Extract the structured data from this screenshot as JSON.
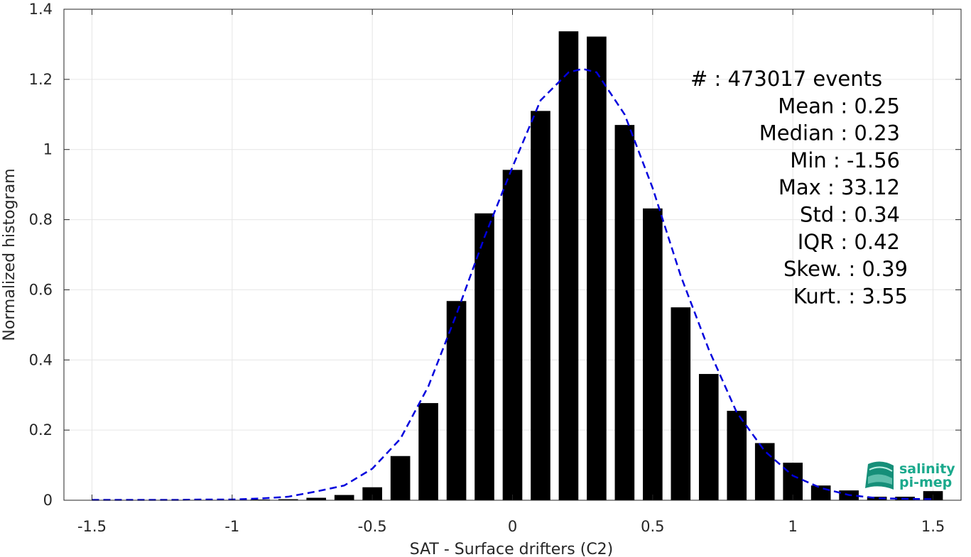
{
  "chart_data": {
    "type": "bar",
    "xlabel": "SAT - Surface drifters (C2)",
    "ylabel": "Normalized histogram",
    "xlim": [
      -1.6,
      1.6
    ],
    "ylim": [
      0,
      1.4
    ],
    "xticks": [
      -1.5,
      -1,
      -0.5,
      0,
      0.5,
      1,
      1.5
    ],
    "xtick_labels": [
      "-1.5",
      "-1",
      "-0.5",
      "0",
      "0.5",
      "1",
      "1.5"
    ],
    "yticks": [
      0,
      0.2,
      0.4,
      0.6,
      0.8,
      1,
      1.2,
      1.4
    ],
    "ytick_labels": [
      "0",
      "0.2",
      "0.4",
      "0.6",
      "0.8",
      "1",
      "1.2",
      "1.4"
    ],
    "grid": true,
    "bar_color": "#000000",
    "bar_width": 0.07,
    "bars": {
      "x": [
        -1.5,
        -1.4,
        -1.3,
        -1.2,
        -1.1,
        -1.0,
        -0.9,
        -0.8,
        -0.7,
        -0.6,
        -0.5,
        -0.4,
        -0.3,
        -0.2,
        -0.1,
        0.0,
        0.1,
        0.2,
        0.3,
        0.4,
        0.5,
        0.6,
        0.7,
        0.8,
        0.9,
        1.0,
        1.1,
        1.2,
        1.3,
        1.4,
        1.5
      ],
      "values": [
        0,
        0,
        0,
        0,
        0,
        0.001,
        0.002,
        0.003,
        0.007,
        0.015,
        0.037,
        0.126,
        0.277,
        0.568,
        0.818,
        0.942,
        1.11,
        1.337,
        1.322,
        1.07,
        0.832,
        0.55,
        0.36,
        0.255,
        0.163,
        0.107,
        0.042,
        0.028,
        0.01,
        0.01,
        0.026
      ]
    },
    "fit_curve": {
      "color": "#0000dd",
      "style": "dashed",
      "x": [
        -1.5,
        -1.4,
        -1.3,
        -1.2,
        -1.1,
        -1.0,
        -0.9,
        -0.8,
        -0.7,
        -0.6,
        -0.5,
        -0.4,
        -0.3,
        -0.2,
        -0.1,
        0.0,
        0.1,
        0.2,
        0.25,
        0.3,
        0.4,
        0.5,
        0.6,
        0.7,
        0.8,
        0.9,
        1.0,
        1.1,
        1.2,
        1.3,
        1.4,
        1.5
      ],
      "y": [
        0.001,
        0.001,
        0.001,
        0.001,
        0.002,
        0.002,
        0.005,
        0.01,
        0.025,
        0.042,
        0.09,
        0.175,
        0.325,
        0.53,
        0.75,
        0.95,
        1.14,
        1.22,
        1.23,
        1.22,
        1.1,
        0.89,
        0.64,
        0.43,
        0.25,
        0.14,
        0.07,
        0.035,
        0.015,
        0.006,
        0.004,
        0.003
      ]
    },
    "stats": [
      {
        "text": "#   : 473017 events",
        "anchor": "start"
      },
      {
        "text": "Mean : 0.25",
        "anchor": "end"
      },
      {
        "text": "Median : 0.23",
        "anchor": "end"
      },
      {
        "text": "Min : -1.56",
        "anchor": "end"
      },
      {
        "text": "Max : 33.12",
        "anchor": "end"
      },
      {
        "text": "Std : 0.34",
        "anchor": "end"
      },
      {
        "text": "IQR : 0.42",
        "anchor": "end"
      },
      {
        "text": "Skew. : 0.39",
        "anchor": "end"
      },
      {
        "text": "Kurt. : 3.55",
        "anchor": "end"
      }
    ]
  },
  "logo": {
    "line1": "salinity",
    "line2": "pi-mep",
    "color": "#1aa98c"
  }
}
